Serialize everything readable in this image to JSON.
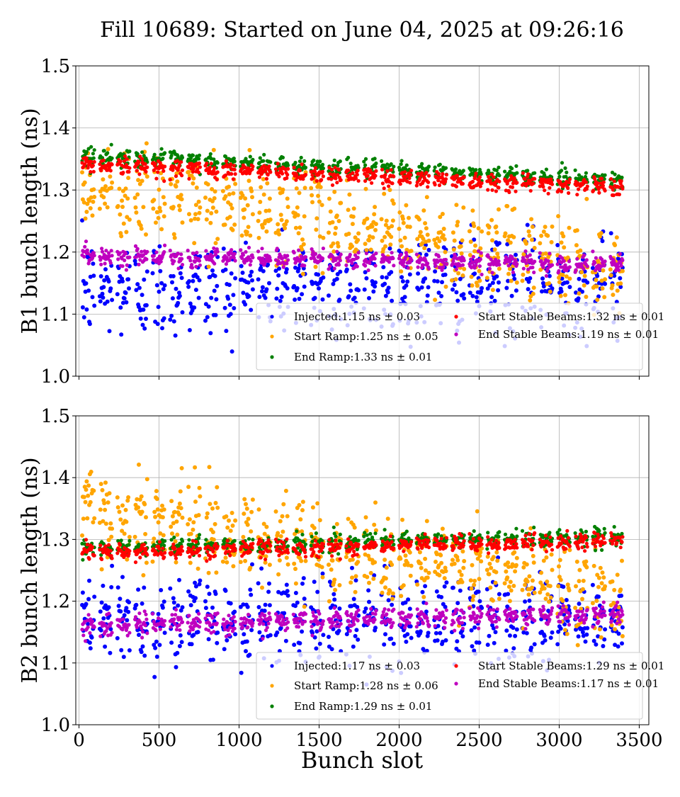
{
  "figure": {
    "title": "Fill 10689: Started on June 04, 2025 at 09:26:16",
    "xlabel": "Bunch slot"
  },
  "colors": {
    "injected": "#0000ff",
    "start_ramp": "#ffa500",
    "end_ramp": "#008000",
    "start_stable": "#ff0000",
    "end_stable": "#bf00bf"
  },
  "chart_data": [
    {
      "type": "scatter",
      "ylabel": "B1 bunch length (ns)",
      "xlim": [
        -20,
        3560
      ],
      "ylim": [
        1.0,
        1.5
      ],
      "xticks": [
        0,
        500,
        1000,
        1500,
        2000,
        2500,
        3000,
        3500
      ],
      "xtick_labels": [],
      "yticks": [
        "1.0",
        "1.1",
        "1.2",
        "1.3",
        "1.4",
        "1.5"
      ],
      "grid": true,
      "legend_position": "lower-right",
      "series": [
        {
          "name": "Injected:1.15 ns ± 0.03",
          "key": "injected",
          "mean": 1.15,
          "std": 0.03,
          "start_mean": 1.14,
          "end_mean": 1.15,
          "spread": 0.04
        },
        {
          "name": "Start Ramp:1.25 ns ± 0.05",
          "key": "start_ramp",
          "mean": 1.25,
          "std": 0.05,
          "start_mean": 1.31,
          "end_mean": 1.17,
          "spread": 0.035
        },
        {
          "name": "End Ramp:1.33 ns ± 0.01",
          "key": "end_ramp",
          "mean": 1.33,
          "std": 0.01,
          "start_mean": 1.355,
          "end_mean": 1.315,
          "spread": 0.007
        },
        {
          "name": "Start Stable Beams:1.32 ns ± 0.01",
          "key": "start_stable",
          "mean": 1.32,
          "std": 0.01,
          "start_mean": 1.342,
          "end_mean": 1.305,
          "spread": 0.007
        },
        {
          "name": "End Stable Beams:1.19 ns ± 0.01",
          "key": "end_stable",
          "mean": 1.19,
          "std": 0.01,
          "start_mean": 1.195,
          "end_mean": 1.18,
          "spread": 0.007
        }
      ]
    },
    {
      "type": "scatter",
      "ylabel": "B2 bunch length (ns)",
      "xlim": [
        -20,
        3560
      ],
      "ylim": [
        1.0,
        1.5
      ],
      "xticks": [
        0,
        500,
        1000,
        1500,
        2000,
        2500,
        3000,
        3500
      ],
      "xtick_labels": [
        "0",
        "500",
        "1000",
        "1500",
        "2000",
        "2500",
        "3000",
        "3500"
      ],
      "yticks": [
        "1.0",
        "1.1",
        "1.2",
        "1.3",
        "1.4",
        "1.5"
      ],
      "grid": true,
      "legend_position": "lower-right",
      "series": [
        {
          "name": "Injected:1.17 ns ± 0.03",
          "key": "injected",
          "mean": 1.17,
          "std": 0.03,
          "start_mean": 1.17,
          "end_mean": 1.17,
          "spread": 0.035
        },
        {
          "name": "Start Ramp:1.28 ns ± 0.06",
          "key": "start_ramp",
          "mean": 1.28,
          "std": 0.06,
          "start_mean": 1.35,
          "end_mean": 1.21,
          "spread": 0.035
        },
        {
          "name": "End Ramp:1.29 ns ± 0.01",
          "key": "end_ramp",
          "mean": 1.29,
          "std": 0.01,
          "start_mean": 1.285,
          "end_mean": 1.305,
          "spread": 0.007
        },
        {
          "name": "Start Stable Beams:1.29 ns ± 0.01",
          "key": "start_stable",
          "mean": 1.29,
          "std": 0.01,
          "start_mean": 1.278,
          "end_mean": 1.298,
          "spread": 0.007
        },
        {
          "name": "End Stable Beams:1.17 ns ± 0.01",
          "key": "end_stable",
          "mean": 1.17,
          "std": 0.01,
          "start_mean": 1.16,
          "end_mean": 1.18,
          "spread": 0.008
        }
      ]
    }
  ]
}
